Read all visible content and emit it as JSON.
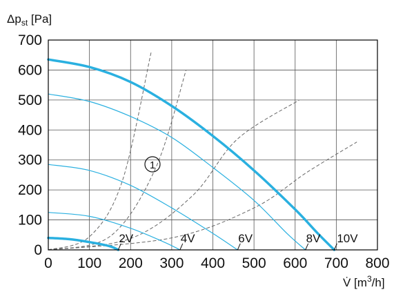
{
  "chart_data": {
    "type": "line",
    "ylabel": "Δp",
    "ylabel_subscript": "st",
    "ylabel_unit": " [Pa]",
    "xlabel": "V̇ [m",
    "xlabel_superscript": "3",
    "xlabel_unit": "/h]",
    "xlim": [
      0,
      800
    ],
    "ylim": [
      0,
      700
    ],
    "x_ticks": [
      0,
      100,
      200,
      300,
      400,
      500,
      600,
      700,
      800
    ],
    "y_ticks": [
      0,
      100,
      200,
      300,
      400,
      500,
      600,
      700
    ],
    "grid": true,
    "annotation": "1",
    "fan_curves": [
      {
        "label": "2V",
        "points": [
          [
            0,
            40
          ],
          [
            50,
            36
          ],
          [
            100,
            26
          ],
          [
            150,
            12
          ],
          [
            170,
            0
          ]
        ],
        "bold": true,
        "label_x": 175,
        "label_y": 12
      },
      {
        "label": "4V",
        "points": [
          [
            0,
            125
          ],
          [
            100,
            112
          ],
          [
            200,
            72
          ],
          [
            280,
            27
          ],
          [
            320,
            0
          ]
        ],
        "bold": false,
        "label_x": 325,
        "label_y": 12
      },
      {
        "label": "6V",
        "points": [
          [
            0,
            285
          ],
          [
            100,
            265
          ],
          [
            200,
            215
          ],
          [
            300,
            140
          ],
          [
            400,
            55
          ],
          [
            460,
            0
          ]
        ],
        "bold": false,
        "label_x": 465,
        "label_y": 12
      },
      {
        "label": "8V",
        "points": [
          [
            0,
            520
          ],
          [
            100,
            495
          ],
          [
            200,
            445
          ],
          [
            300,
            375
          ],
          [
            400,
            275
          ],
          [
            500,
            165
          ],
          [
            580,
            55
          ],
          [
            625,
            0
          ]
        ],
        "bold": false,
        "label_x": 630,
        "label_y": 12
      },
      {
        "label": "10V",
        "points": [
          [
            0,
            635
          ],
          [
            100,
            610
          ],
          [
            200,
            560
          ],
          [
            300,
            480
          ],
          [
            400,
            380
          ],
          [
            500,
            265
          ],
          [
            600,
            135
          ],
          [
            655,
            55
          ],
          [
            695,
            0
          ]
        ],
        "bold": true,
        "label_x": 705,
        "label_y": 12
      }
    ],
    "system_curves": [
      {
        "points": [
          [
            0,
            0
          ],
          [
            100,
            44
          ],
          [
            180,
            230
          ],
          [
            250,
            660
          ]
        ]
      },
      {
        "points": [
          [
            0,
            0
          ],
          [
            150,
            45
          ],
          [
            260,
            270
          ],
          [
            335,
            600
          ]
        ]
      },
      {
        "points": [
          [
            0,
            0
          ],
          [
            200,
            38
          ],
          [
            350,
            180
          ],
          [
            460,
            370
          ],
          [
            610,
            500
          ]
        ]
      },
      {
        "points": [
          [
            0,
            0
          ],
          [
            300,
            40
          ],
          [
            500,
            140
          ],
          [
            630,
            260
          ],
          [
            750,
            360
          ]
        ]
      }
    ],
    "colors": {
      "fan_curve": "#2ab0e0",
      "system_curve": "#666666",
      "grid": "#555555",
      "axis": "#000000"
    }
  }
}
